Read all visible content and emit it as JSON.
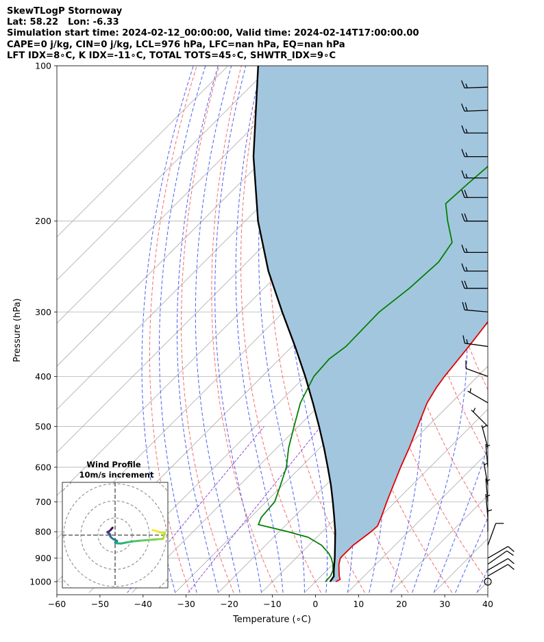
{
  "header": {
    "line1": "SkewTLogP Stornoway",
    "line2": "Lat: 58.22   Lon: -6.33",
    "line3": "Simulation start time: 2024-02-12_00:00:00, Valid time: 2024-02-14T17:00:00.00",
    "line4": "CAPE=0 j/kg, CIN=0 j/kg, LCL=976 hPa, LFC=nan hPa, EQ=nan hPa",
    "line5": "LFT IDX=8∘C, K IDX=-11∘C, TOTAL TOTS=45∘C, SHWTR_IDX=9∘C"
  },
  "chart_data": [
    {
      "type": "line",
      "subtype": "skew-T log-P",
      "xlabel": "Temperature (∘C)",
      "ylabel": "Pressure (hPa)",
      "xlim": [
        -60,
        40
      ],
      "ylim": [
        1050,
        100
      ],
      "yscale": "log",
      "xticks": [
        "−60",
        "−50",
        "−40",
        "−30",
        "−20",
        "−10",
        "0",
        "10",
        "20",
        "30",
        "40"
      ],
      "xtick_values": [
        -60,
        -50,
        -40,
        -30,
        -20,
        -10,
        0,
        10,
        20,
        30,
        40
      ],
      "yticks": [
        "100",
        "200",
        "300",
        "400",
        "500",
        "600",
        "700",
        "800",
        "900",
        "1000"
      ],
      "ytick_values": [
        100,
        200,
        300,
        400,
        500,
        600,
        700,
        800,
        900,
        1000
      ],
      "grid": true,
      "colors": {
        "temperature": "#e00000",
        "dewpoint": "#008000",
        "parcel": "#000000",
        "shade": "#a3c6df",
        "dry_adiabat": "#f26d6d",
        "moist_adiabat": "#4b5ef5",
        "mixing_ratio": "#8d4bd6",
        "isotherm": "#a9a9a9"
      },
      "series": [
        {
          "key": "temperature",
          "points": [
            [
              1000,
              4.7
            ],
            [
              990,
              5.2
            ],
            [
              975,
              4.2
            ],
            [
              950,
              2.8
            ],
            [
              925,
              1.4
            ],
            [
              900,
              0.3
            ],
            [
              850,
              0.3
            ],
            [
              800,
              1.3
            ],
            [
              780,
              1.5
            ],
            [
              750,
              0.3
            ],
            [
              700,
              -2.0
            ],
            [
              650,
              -4.3
            ],
            [
              600,
              -6.8
            ],
            [
              550,
              -9.3
            ],
            [
              500,
              -12.3
            ],
            [
              450,
              -15.6
            ],
            [
              420,
              -17.0
            ],
            [
              400,
              -17.7
            ],
            [
              350,
              -19.0
            ],
            [
              300,
              -20.8
            ],
            [
              270,
              -21.8
            ],
            [
              250,
              -22.0
            ],
            [
              230,
              -20.4
            ],
            [
              210,
              -17.5
            ],
            [
              200,
              -14.7
            ],
            [
              185,
              -11.5
            ],
            [
              170,
              -9.2
            ],
            [
              150,
              -5.8
            ],
            [
              130,
              -3.5
            ],
            [
              115,
              -1.8
            ],
            [
              100,
              -0.3
            ]
          ]
        },
        {
          "key": "dewpoint",
          "points": [
            [
              1000,
              2.3
            ],
            [
              975,
              2.2
            ],
            [
              950,
              1.4
            ],
            [
              925,
              0.0
            ],
            [
              900,
              -1.8
            ],
            [
              880,
              -3.6
            ],
            [
              850,
              -7.0
            ],
            [
              820,
              -12.0
            ],
            [
              800,
              -18.0
            ],
            [
              775,
              -26.5
            ],
            [
              750,
              -27.5
            ],
            [
              700,
              -28.0
            ],
            [
              650,
              -30.5
            ],
            [
              600,
              -33.3
            ],
            [
              550,
              -37.3
            ],
            [
              500,
              -41.0
            ],
            [
              450,
              -45.0
            ],
            [
              400,
              -48.0
            ],
            [
              370,
              -48.5
            ],
            [
              350,
              -47.5
            ],
            [
              300,
              -47.8
            ],
            [
              270,
              -46.3
            ],
            [
              240,
              -45.6
            ],
            [
              220,
              -47.0
            ],
            [
              200,
              -53.0
            ],
            [
              185,
              -57.5
            ],
            [
              170,
              -57.0
            ],
            [
              150,
              -56.0
            ],
            [
              120,
              -54.5
            ],
            [
              100,
              -53.2
            ]
          ]
        },
        {
          "key": "parcel",
          "points": [
            [
              1000,
              3.4
            ],
            [
              976,
              3.0
            ],
            [
              950,
              1.6
            ],
            [
              900,
              -1.0
            ],
            [
              850,
              -3.9
            ],
            [
              800,
              -7.0
            ],
            [
              750,
              -10.6
            ],
            [
              700,
              -14.5
            ],
            [
              650,
              -18.8
            ],
            [
              600,
              -23.7
            ],
            [
              550,
              -29.1
            ],
            [
              500,
              -35.2
            ],
            [
              450,
              -42.1
            ],
            [
              400,
              -50.0
            ],
            [
              350,
              -59.3
            ],
            [
              300,
              -70.3
            ],
            [
              250,
              -83.0
            ],
            [
              200,
              -97.0
            ],
            [
              150,
              -113.0
            ],
            [
              100,
              -133.0
            ]
          ]
        }
      ],
      "wind_barbs": [
        {
          "p": 1000,
          "calm": true
        },
        {
          "p": 975,
          "dir": 60,
          "spd": 10
        },
        {
          "p": 950,
          "dir": 60,
          "spd": 10
        },
        {
          "p": 925,
          "dir": 55,
          "spd": 10
        },
        {
          "p": 900,
          "dir": 60,
          "spd": 10
        },
        {
          "p": 850,
          "dir": 20,
          "spd": 10
        },
        {
          "p": 800,
          "dir": 0,
          "spd": 5
        },
        {
          "p": 750,
          "dir": 355,
          "spd": 5
        },
        {
          "p": 700,
          "dir": 355,
          "spd": 5
        },
        {
          "p": 650,
          "dir": 350,
          "spd": 5
        },
        {
          "p": 600,
          "dir": 355,
          "spd": 5
        },
        {
          "p": 550,
          "dir": 345,
          "spd": 5
        },
        {
          "p": 500,
          "dir": 315,
          "spd": 5
        },
        {
          "p": 450,
          "dir": 300,
          "spd": 5
        },
        {
          "p": 400,
          "dir": 290,
          "spd": 10
        },
        {
          "p": 350,
          "dir": 278,
          "spd": 15
        },
        {
          "p": 300,
          "dir": 275,
          "spd": 20
        },
        {
          "p": 270,
          "dir": 270,
          "spd": 20
        },
        {
          "p": 250,
          "dir": 270,
          "spd": 15
        },
        {
          "p": 230,
          "dir": 270,
          "spd": 15
        },
        {
          "p": 200,
          "dir": 270,
          "spd": 20
        },
        {
          "p": 180,
          "dir": 270,
          "spd": 20
        },
        {
          "p": 165,
          "dir": 270,
          "spd": 15
        },
        {
          "p": 150,
          "dir": 270,
          "spd": 15
        },
        {
          "p": 135,
          "dir": 270,
          "spd": 15
        },
        {
          "p": 122,
          "dir": 268,
          "spd": 15
        },
        {
          "p": 110,
          "dir": 268,
          "spd": 15
        }
      ]
    },
    {
      "type": "line",
      "subtype": "hodograph",
      "title": "Wind Profile",
      "subtitle": "10m/s increment",
      "rings": 3,
      "points": [
        [
          -1.5,
          4.3
        ],
        [
          -2.2,
          3.5
        ],
        [
          -2.8,
          2.8
        ],
        [
          -3.5,
          2.2
        ],
        [
          -4.5,
          1.8
        ],
        [
          -4.0,
          1.2
        ],
        [
          -3.2,
          0.7
        ],
        [
          -2.8,
          0.0
        ],
        [
          -2.8,
          -0.8
        ],
        [
          -2.0,
          -1.6
        ],
        [
          -1.0,
          -2.4
        ],
        [
          0.2,
          -2.8
        ],
        [
          1.2,
          -3.5
        ],
        [
          0.6,
          -4.2
        ],
        [
          0.0,
          -4.5
        ],
        [
          1.3,
          -4.8
        ],
        [
          3.5,
          -4.9
        ],
        [
          7.0,
          -4.2
        ],
        [
          11.0,
          -3.6
        ],
        [
          15.0,
          -3.2
        ],
        [
          20.0,
          -2.8
        ],
        [
          25.0,
          -2.4
        ],
        [
          28.0,
          -2.2
        ],
        [
          29.0,
          1.5
        ],
        [
          27.0,
          1.5
        ],
        [
          25.0,
          2.0
        ],
        [
          22.0,
          3.0
        ]
      ]
    }
  ]
}
